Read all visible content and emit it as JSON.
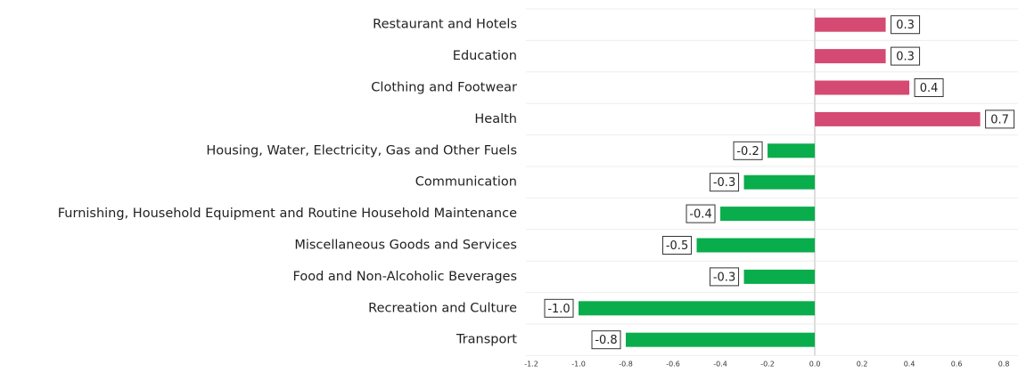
{
  "chart_data": {
    "type": "bar",
    "orientation": "horizontal",
    "categories": [
      "Restaurant and Hotels",
      "Education",
      "Clothing and Footwear",
      "Health",
      "Housing, Water, Electricity, Gas and Other Fuels",
      "Communication",
      "Furnishing, Household Equipment and Routine Household Maintenance",
      "Miscellaneous Goods and Services",
      "Food and Non-Alcoholic Beverages",
      "Recreation and Culture",
      "Transport"
    ],
    "values": [
      0.3,
      0.3,
      0.4,
      0.7,
      -0.2,
      -0.3,
      -0.4,
      -0.5,
      -0.3,
      -1.0,
      -0.8
    ],
    "value_labels": [
      "0.3",
      "0.3",
      "0.4",
      "0.7",
      "-0.2",
      "-0.3",
      "-0.4",
      "-0.5",
      "-0.3",
      "-1.0",
      "-0.8"
    ],
    "positive_color": "#d44a72",
    "negative_color": "#0aad4b",
    "xlim": [
      -1.2,
      0.86
    ],
    "xticks": [
      -1.2,
      {
        "value": -1.0,
        "label": "-1.0"
      },
      -0.8,
      -0.6,
      -0.4,
      -0.2,
      {
        "value": 0,
        "label": "0.0"
      },
      0.2,
      0.4,
      0.6,
      0.8
    ]
  }
}
